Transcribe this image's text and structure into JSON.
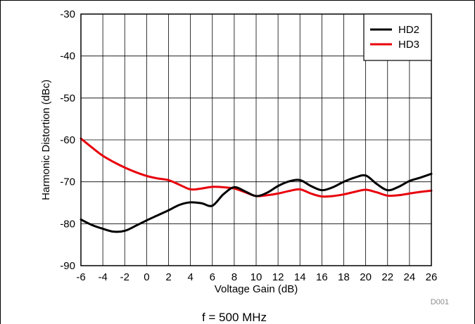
{
  "chart_data": {
    "type": "line",
    "xlabel": "Voltage Gain (dB)",
    "ylabel": "Harmonic Distortion (dBc)",
    "xlim": [
      -6,
      26
    ],
    "ylim": [
      -90,
      -30
    ],
    "x_ticks": [
      -6,
      -4,
      -2,
      0,
      2,
      4,
      6,
      8,
      10,
      12,
      14,
      16,
      18,
      20,
      22,
      24,
      26
    ],
    "y_ticks": [
      -30,
      -40,
      -50,
      -60,
      -70,
      -80,
      -90
    ],
    "grid": true,
    "legend_position": "top-right",
    "series": [
      {
        "name": "HD2",
        "color": "#000000",
        "x": [
          -6,
          -5,
          -4,
          -3,
          -2,
          -1,
          0,
          1,
          2,
          3,
          4,
          5,
          6,
          7,
          8,
          9,
          10,
          11,
          12,
          13,
          14,
          15,
          16,
          17,
          18,
          19,
          20,
          21,
          22,
          23,
          24,
          25,
          26
        ],
        "y": [
          -79,
          -80.3,
          -81.2,
          -81.9,
          -81.7,
          -80.5,
          -79.2,
          -78,
          -76.8,
          -75.5,
          -74.9,
          -75.1,
          -75.7,
          -73,
          -71.3,
          -72.3,
          -73.4,
          -72.6,
          -71,
          -69.9,
          -69.6,
          -71,
          -72,
          -71.3,
          -70,
          -69,
          -68.5,
          -70.5,
          -72,
          -71.2,
          -69.8,
          -69,
          -68.1
        ]
      },
      {
        "name": "HD3",
        "color": "#e8000b",
        "x": [
          -6,
          -5,
          -4,
          -3,
          -2,
          -1,
          0,
          1,
          2,
          3,
          4,
          5,
          6,
          7,
          8,
          9,
          10,
          11,
          12,
          13,
          14,
          15,
          16,
          17,
          18,
          19,
          20,
          21,
          22,
          23,
          24,
          25,
          26
        ],
        "y": [
          -59.7,
          -61.8,
          -63.8,
          -65.3,
          -66.6,
          -67.7,
          -68.6,
          -69.2,
          -69.6,
          -70.7,
          -71.8,
          -71.6,
          -71.2,
          -71.3,
          -71.6,
          -72.5,
          -73.4,
          -73.2,
          -72.8,
          -72.2,
          -71.8,
          -72.8,
          -73.5,
          -73.4,
          -73,
          -72.4,
          -71.9,
          -72.5,
          -73.3,
          -73.2,
          -72.8,
          -72.4,
          -72.1
        ]
      }
    ]
  },
  "code_label": "D001",
  "caption": "f = 500 MHz"
}
